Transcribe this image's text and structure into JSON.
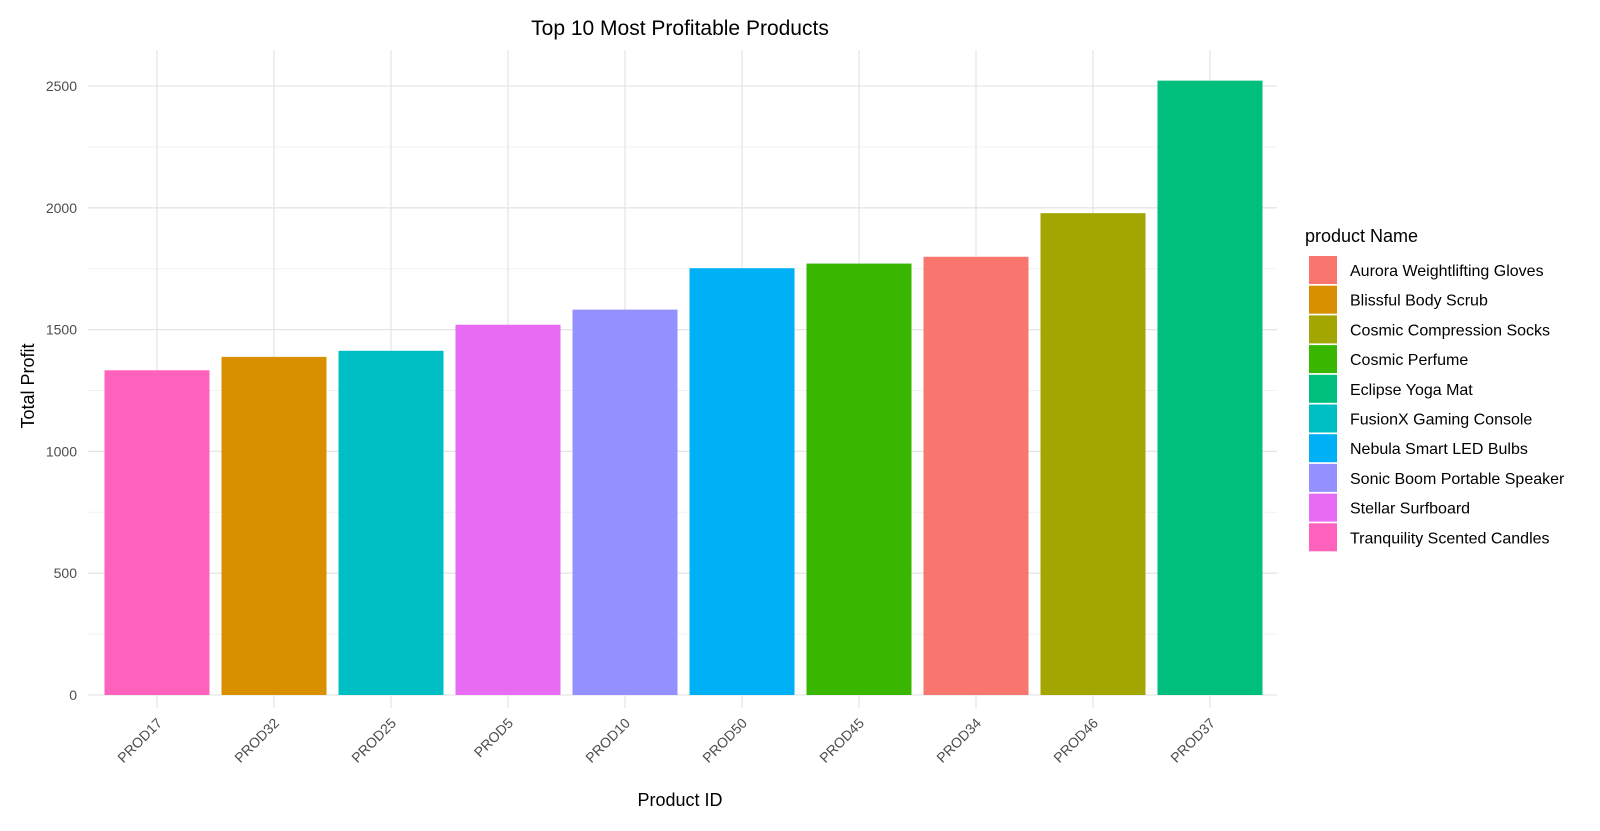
{
  "chart_data": {
    "type": "bar",
    "title": "Top 10 Most Profitable Products",
    "xlabel": "Product ID",
    "ylabel": "Total Profit",
    "categories": [
      "PROD17",
      "PROD32",
      "PROD25",
      "PROD5",
      "PROD10",
      "PROD50",
      "PROD45",
      "PROD34",
      "PROD46",
      "PROD37"
    ],
    "values": [
      1333,
      1388,
      1413,
      1520,
      1582,
      1752,
      1771,
      1799,
      1978,
      2522
    ],
    "bar_product_names": [
      "Tranquility Scented Candles",
      "Blissful Body Scrub",
      "FusionX Gaming Console",
      "Stellar Surfboard",
      "Sonic Boom Portable Speaker",
      "Nebula Smart LED Bulbs",
      "Cosmic Perfume",
      "Aurora Weightlifting Gloves",
      "Cosmic Compression Socks",
      "Eclipse Yoga Mat"
    ],
    "ylim": [
      0,
      2650
    ],
    "yticks": [
      0,
      500,
      1000,
      1500,
      2000,
      2500
    ],
    "grid": true,
    "legend": {
      "title": "product Name",
      "placement": "right",
      "entries": [
        {
          "label": "Aurora Weightlifting Gloves",
          "color": "#F8766D"
        },
        {
          "label": "Blissful Body Scrub",
          "color": "#D89000"
        },
        {
          "label": "Cosmic Compression Socks",
          "color": "#A3A500"
        },
        {
          "label": "Cosmic Perfume",
          "color": "#39B600"
        },
        {
          "label": "Eclipse Yoga Mat",
          "color": "#00BF7D"
        },
        {
          "label": "FusionX Gaming Console",
          "color": "#00BFC4"
        },
        {
          "label": "Nebula Smart LED Bulbs",
          "color": "#00B0F6"
        },
        {
          "label": "Sonic Boom Portable Speaker",
          "color": "#9590FF"
        },
        {
          "label": "Stellar Surfboard",
          "color": "#E76BF3"
        },
        {
          "label": "Tranquility Scented Candles",
          "color": "#FF62BC"
        }
      ]
    }
  }
}
